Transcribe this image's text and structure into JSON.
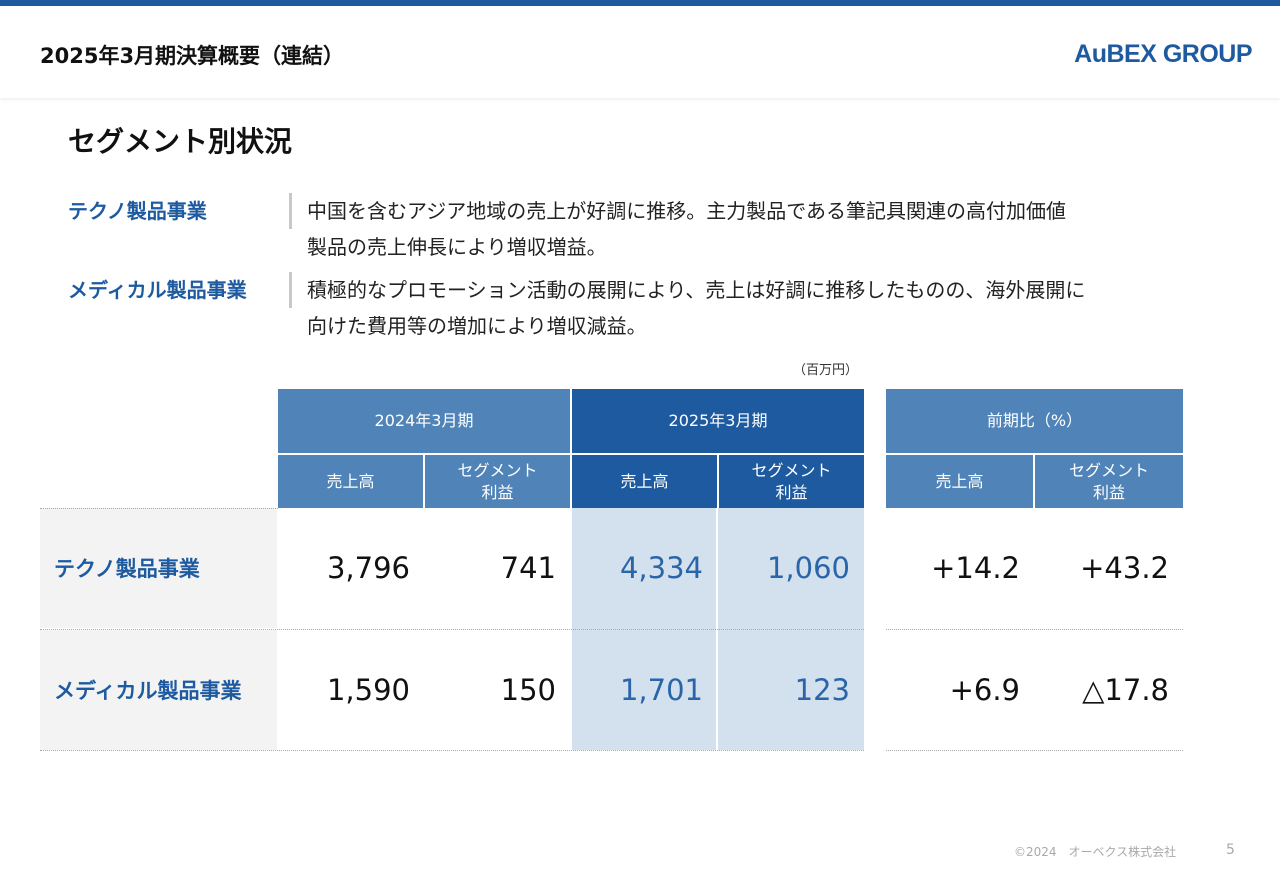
{
  "header": {
    "title": "2025年3月期決算概要（連結）",
    "logo": "AuBEX GROUP"
  },
  "section_title": "セグメント別状況",
  "descriptions": [
    {
      "label": "テクノ製品事業",
      "lines": [
        "中国を含むアジア地域の売上が好調に推移。主力製品である筆記具関連の高付加価値",
        "製品の売上伸長により増収増益。"
      ]
    },
    {
      "label": "メディカル製品事業",
      "lines": [
        "積極的なプロモーション活動の展開により、売上は好調に推移したものの、海外展開に",
        "向けた費用等の増加により増収減益。"
      ]
    }
  ],
  "table": {
    "unit": "（百万円）",
    "group_headers": [
      "2024年3月期",
      "2025年3月期",
      "前期比（%）"
    ],
    "sub_headers": {
      "sales": "売上高",
      "profit_line1": "セグメント",
      "profit_line2": "利益"
    },
    "rows": [
      {
        "segment": "テクノ製品事業",
        "prev_sales": "3,796",
        "prev_profit": "741",
        "cur_sales": "4,334",
        "cur_profit": "1,060",
        "yoy_sales": "+14.2",
        "yoy_profit": "+43.2"
      },
      {
        "segment": "メディカル製品事業",
        "prev_sales": "1,590",
        "prev_profit": "150",
        "cur_sales": "1,701",
        "cur_profit": "123",
        "yoy_sales": "+6.9",
        "yoy_profit": "△17.8"
      }
    ]
  },
  "footer": {
    "copyright": "©2024　オーベクス株式会社",
    "page": "5"
  },
  "colors": {
    "accent": "#1e5aa0",
    "header_light": "#5084b8",
    "highlight": "#d3e0ee",
    "label_bg": "#f3f3f3"
  }
}
